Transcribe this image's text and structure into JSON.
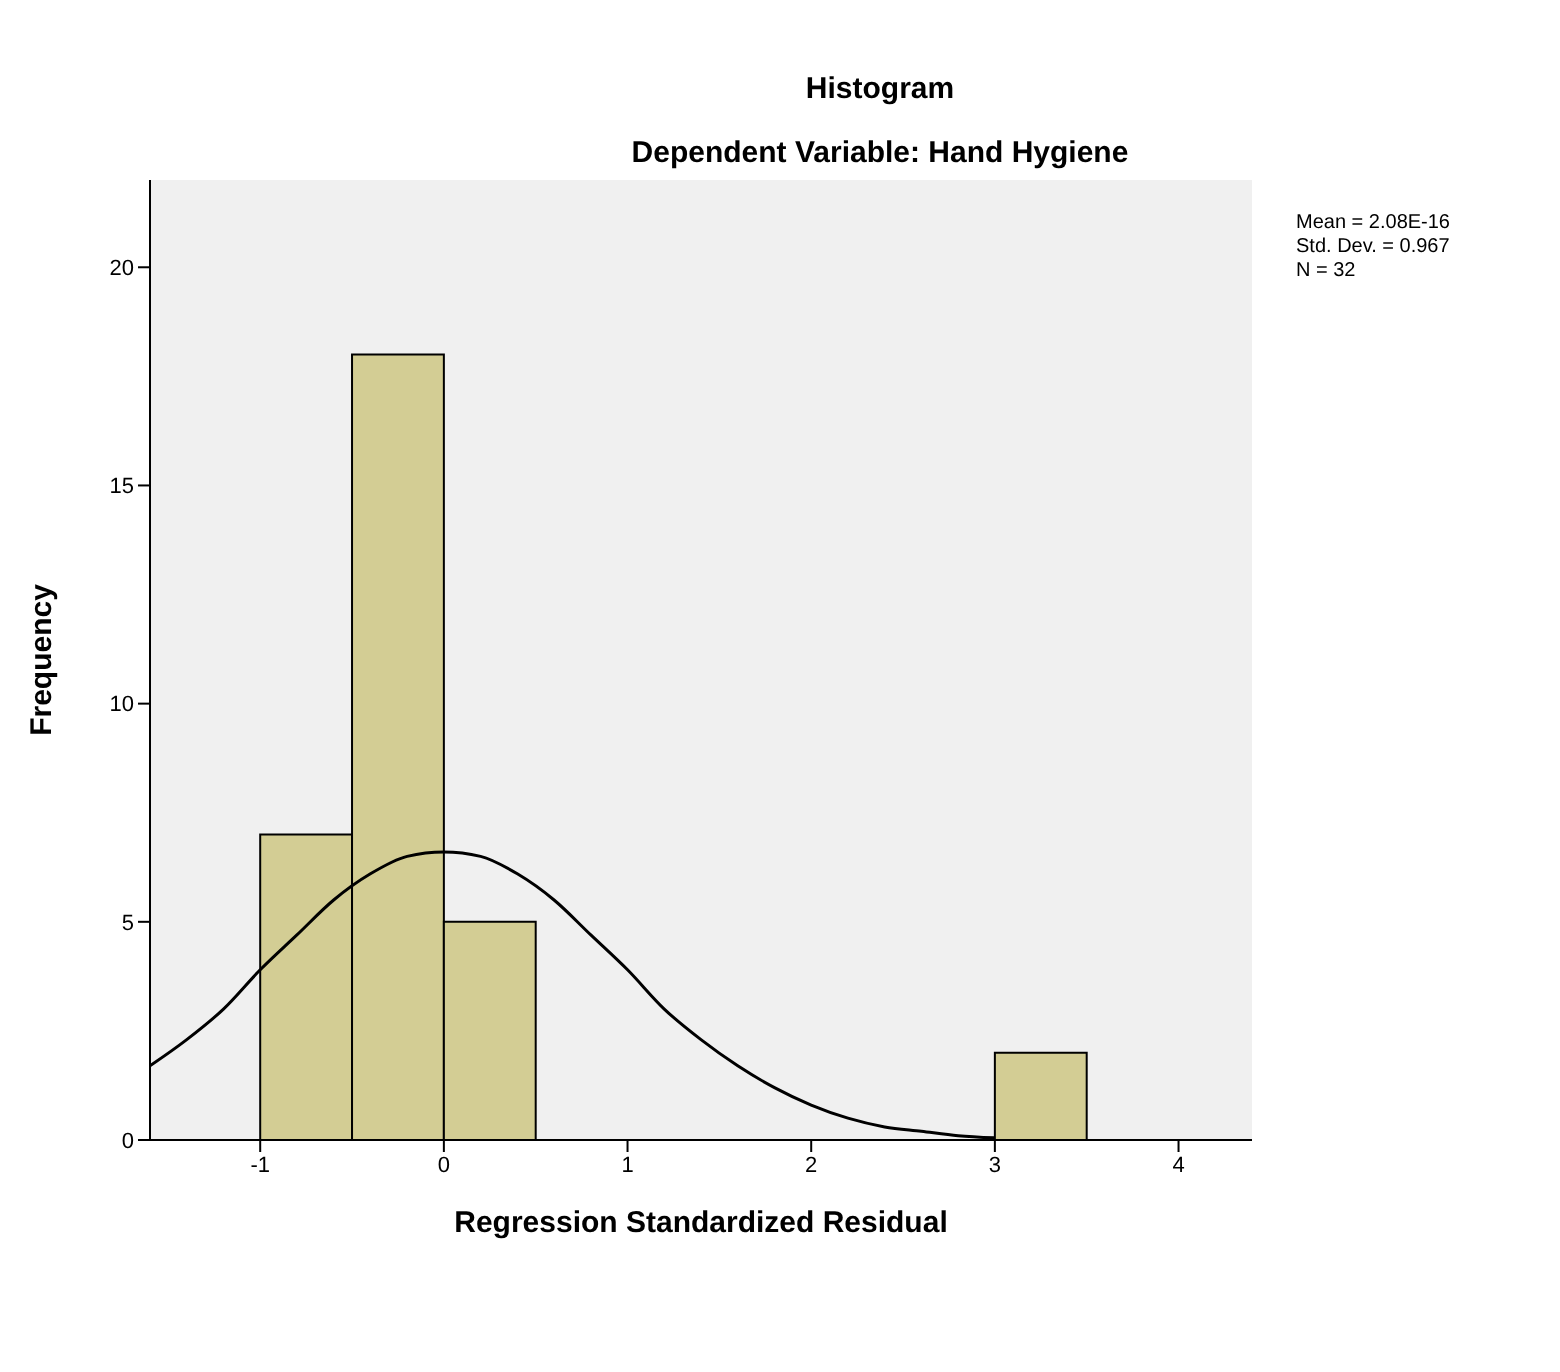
{
  "chart_data": {
    "type": "histogram",
    "title": "Histogram",
    "subtitle": "Dependent Variable: Hand Hygiene",
    "xlabel": "Regression Standardized Residual",
    "ylabel": "Frequency",
    "bins": [
      -1,
      -0.5,
      0,
      0.5,
      1,
      1.5,
      2,
      2.5,
      3,
      3.5
    ],
    "values": [
      7,
      18,
      5,
      0,
      0,
      0,
      0,
      0,
      2
    ],
    "color": "#d3cd94",
    "series": [
      {
        "type": "line",
        "color": "#000000",
        "x": [
          -1.6,
          -1.4,
          -1.2,
          -1.0,
          -0.8,
          -0.6,
          -0.4,
          -0.2,
          0,
          0.2,
          0.4,
          0.6,
          0.8,
          1.0,
          1.2,
          1.4,
          1.6,
          1.8,
          2.0,
          2.2,
          2.4,
          2.6,
          2.8,
          3.0
        ],
        "values": [
          1.7,
          2.3,
          3.0,
          3.9,
          4.7,
          5.5,
          6.1,
          6.5,
          6.6,
          6.5,
          6.1,
          5.5,
          4.7,
          3.9,
          3.0,
          2.3,
          1.7,
          1.2,
          0.8,
          0.5,
          0.3,
          0.2,
          0.1,
          0.05
        ]
      }
    ],
    "marker": "none",
    "xlim": [
      -1.6,
      4.4
    ],
    "xticks": [
      -1,
      0,
      1,
      2,
      3,
      4
    ],
    "ylim": [
      0,
      22
    ],
    "yticks": [
      0,
      5,
      10,
      15,
      20
    ],
    "grid": false,
    "annotations": [
      "Mean = 2.08E-16",
      "Std. Dev. = 0.967",
      "N = 32"
    ]
  }
}
